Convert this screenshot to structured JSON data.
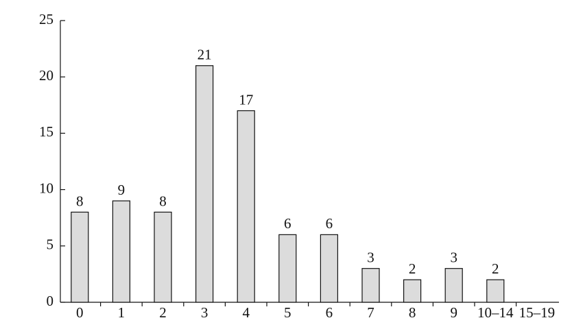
{
  "chart_data": {
    "type": "bar",
    "categories": [
      "0",
      "1",
      "2",
      "3",
      "4",
      "5",
      "6",
      "7",
      "8",
      "9",
      "10–14",
      "15–19"
    ],
    "values": [
      8,
      9,
      8,
      21,
      17,
      6,
      6,
      3,
      2,
      3,
      2,
      null
    ],
    "color": "#dcdcdc",
    "ylim": [
      0,
      25
    ],
    "yticks": [
      0,
      5,
      10,
      15,
      20,
      25
    ],
    "grid": false
  }
}
